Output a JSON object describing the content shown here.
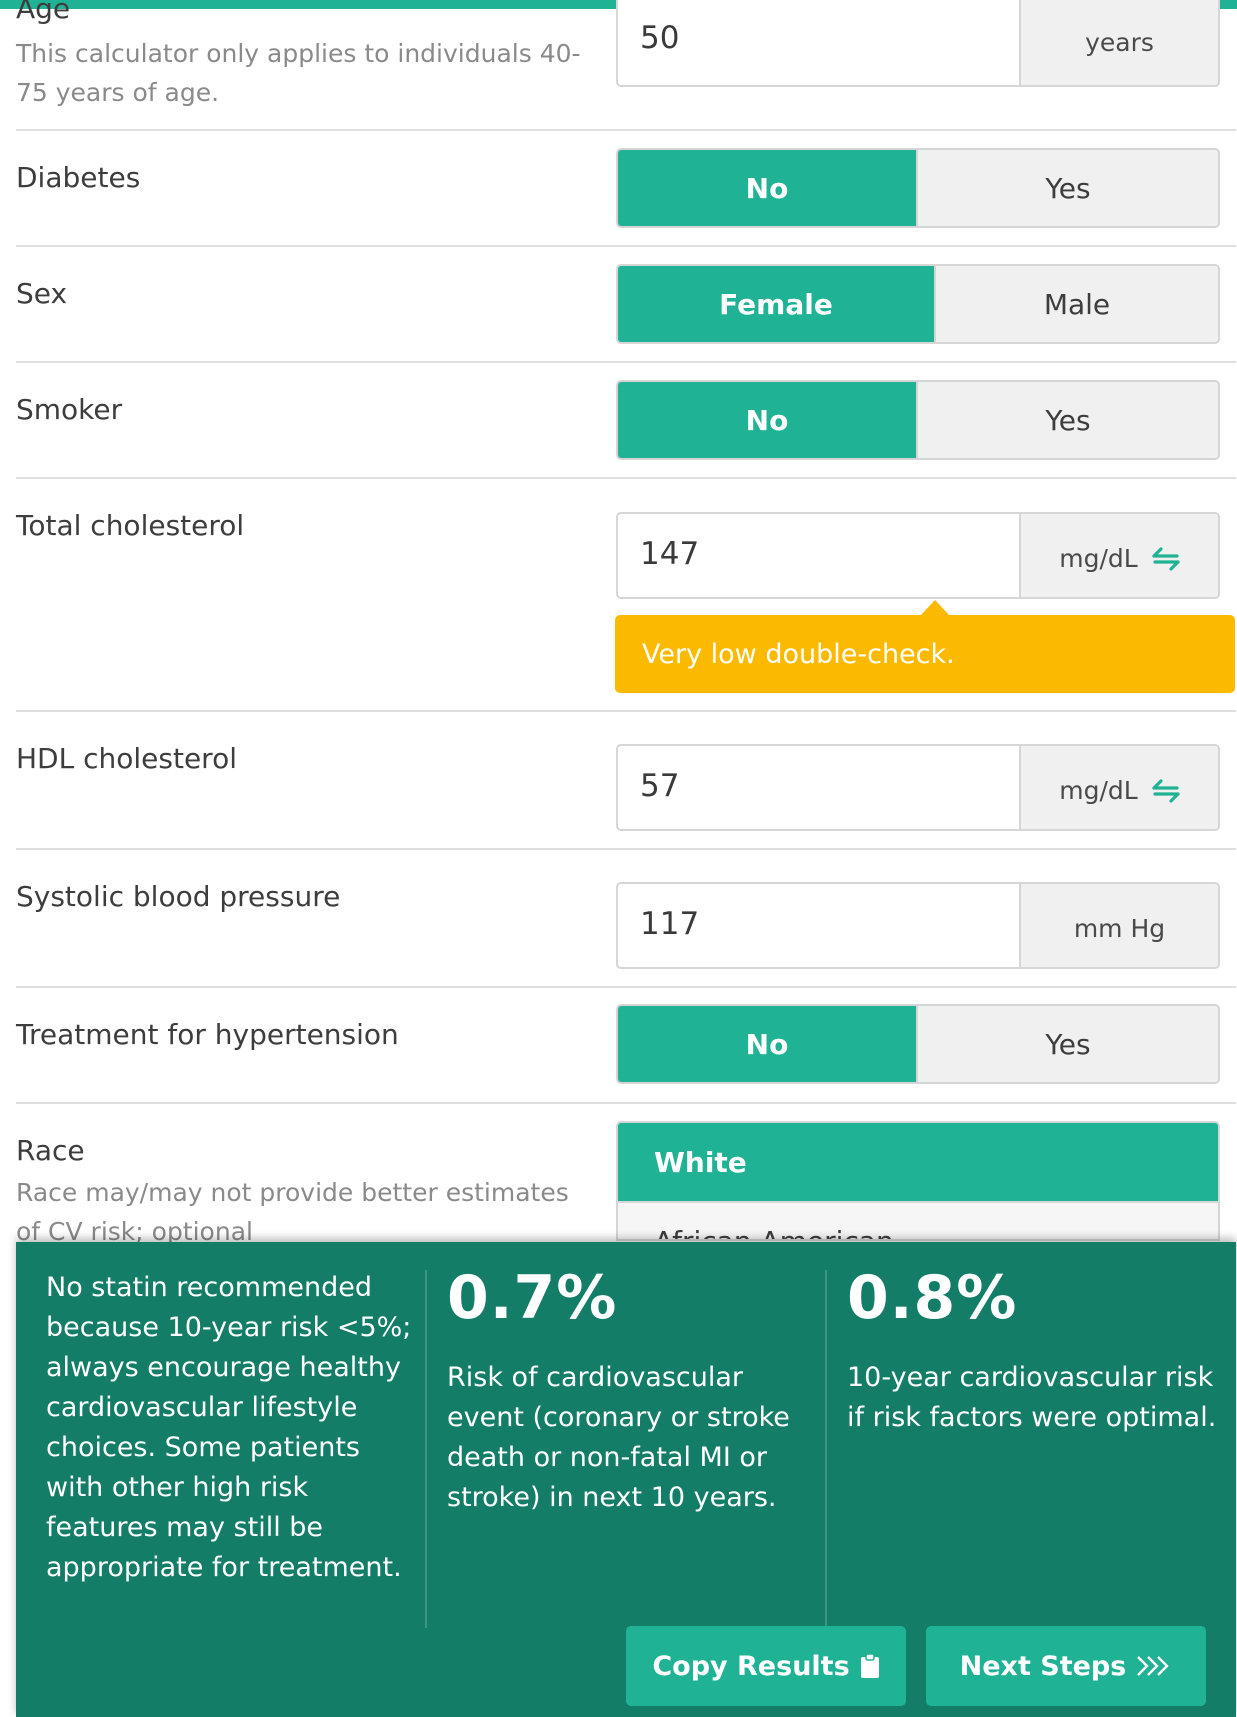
{
  "age": {
    "label": "Age",
    "hint": "This calculator only applies to individuals 40-75 years of age.",
    "value": "50",
    "unit": "years"
  },
  "diabetes": {
    "label": "Diabetes",
    "options": [
      "No",
      "Yes"
    ],
    "selected": "No"
  },
  "sex": {
    "label": "Sex",
    "options": [
      "Female",
      "Male"
    ],
    "selected": "Female"
  },
  "smoker": {
    "label": "Smoker",
    "options": [
      "No",
      "Yes"
    ],
    "selected": "No"
  },
  "total_chol": {
    "label": "Total cholesterol",
    "value": "147",
    "unit": "mg/dL",
    "warning": "Very low double-check.",
    "swap_icon": "swap-units-icon"
  },
  "hdl": {
    "label": "HDL cholesterol",
    "value": "57",
    "unit": "mg/dL",
    "swap_icon": "swap-units-icon"
  },
  "sbp": {
    "label": "Systolic blood pressure",
    "value": "117",
    "unit": "mm Hg"
  },
  "htn": {
    "label": "Treatment for hypertension",
    "options": [
      "No",
      "Yes"
    ],
    "selected": "No"
  },
  "race": {
    "label": "Race",
    "hint": "Race may/may not provide better estimates of CV risk; optional",
    "options": [
      "White",
      "African American"
    ],
    "selected": "White"
  },
  "results": {
    "recommendation": "No statin recommended because 10-year risk <5%; always encourage healthy cardiovascular lifestyle choices. Some patients with other high risk features may still be appropriate for treatment.",
    "risk_value": "0.7%",
    "risk_desc": "Risk of cardiovascular event (coronary or stroke death or non-fatal MI or stroke) in next 10 years.",
    "optimal_value": "0.8%",
    "optimal_desc": "10-year cardiovascular risk if risk factors were optimal.",
    "copy_label": "Copy Results",
    "next_label": "Next Steps"
  },
  "colors": {
    "accent": "#1fb295",
    "results_bg": "#147d67",
    "warning": "#fbb900"
  },
  "icons": {
    "copy": "clipboard-icon",
    "next": "chevrons-right-icon",
    "swap": "swap-units-icon"
  }
}
